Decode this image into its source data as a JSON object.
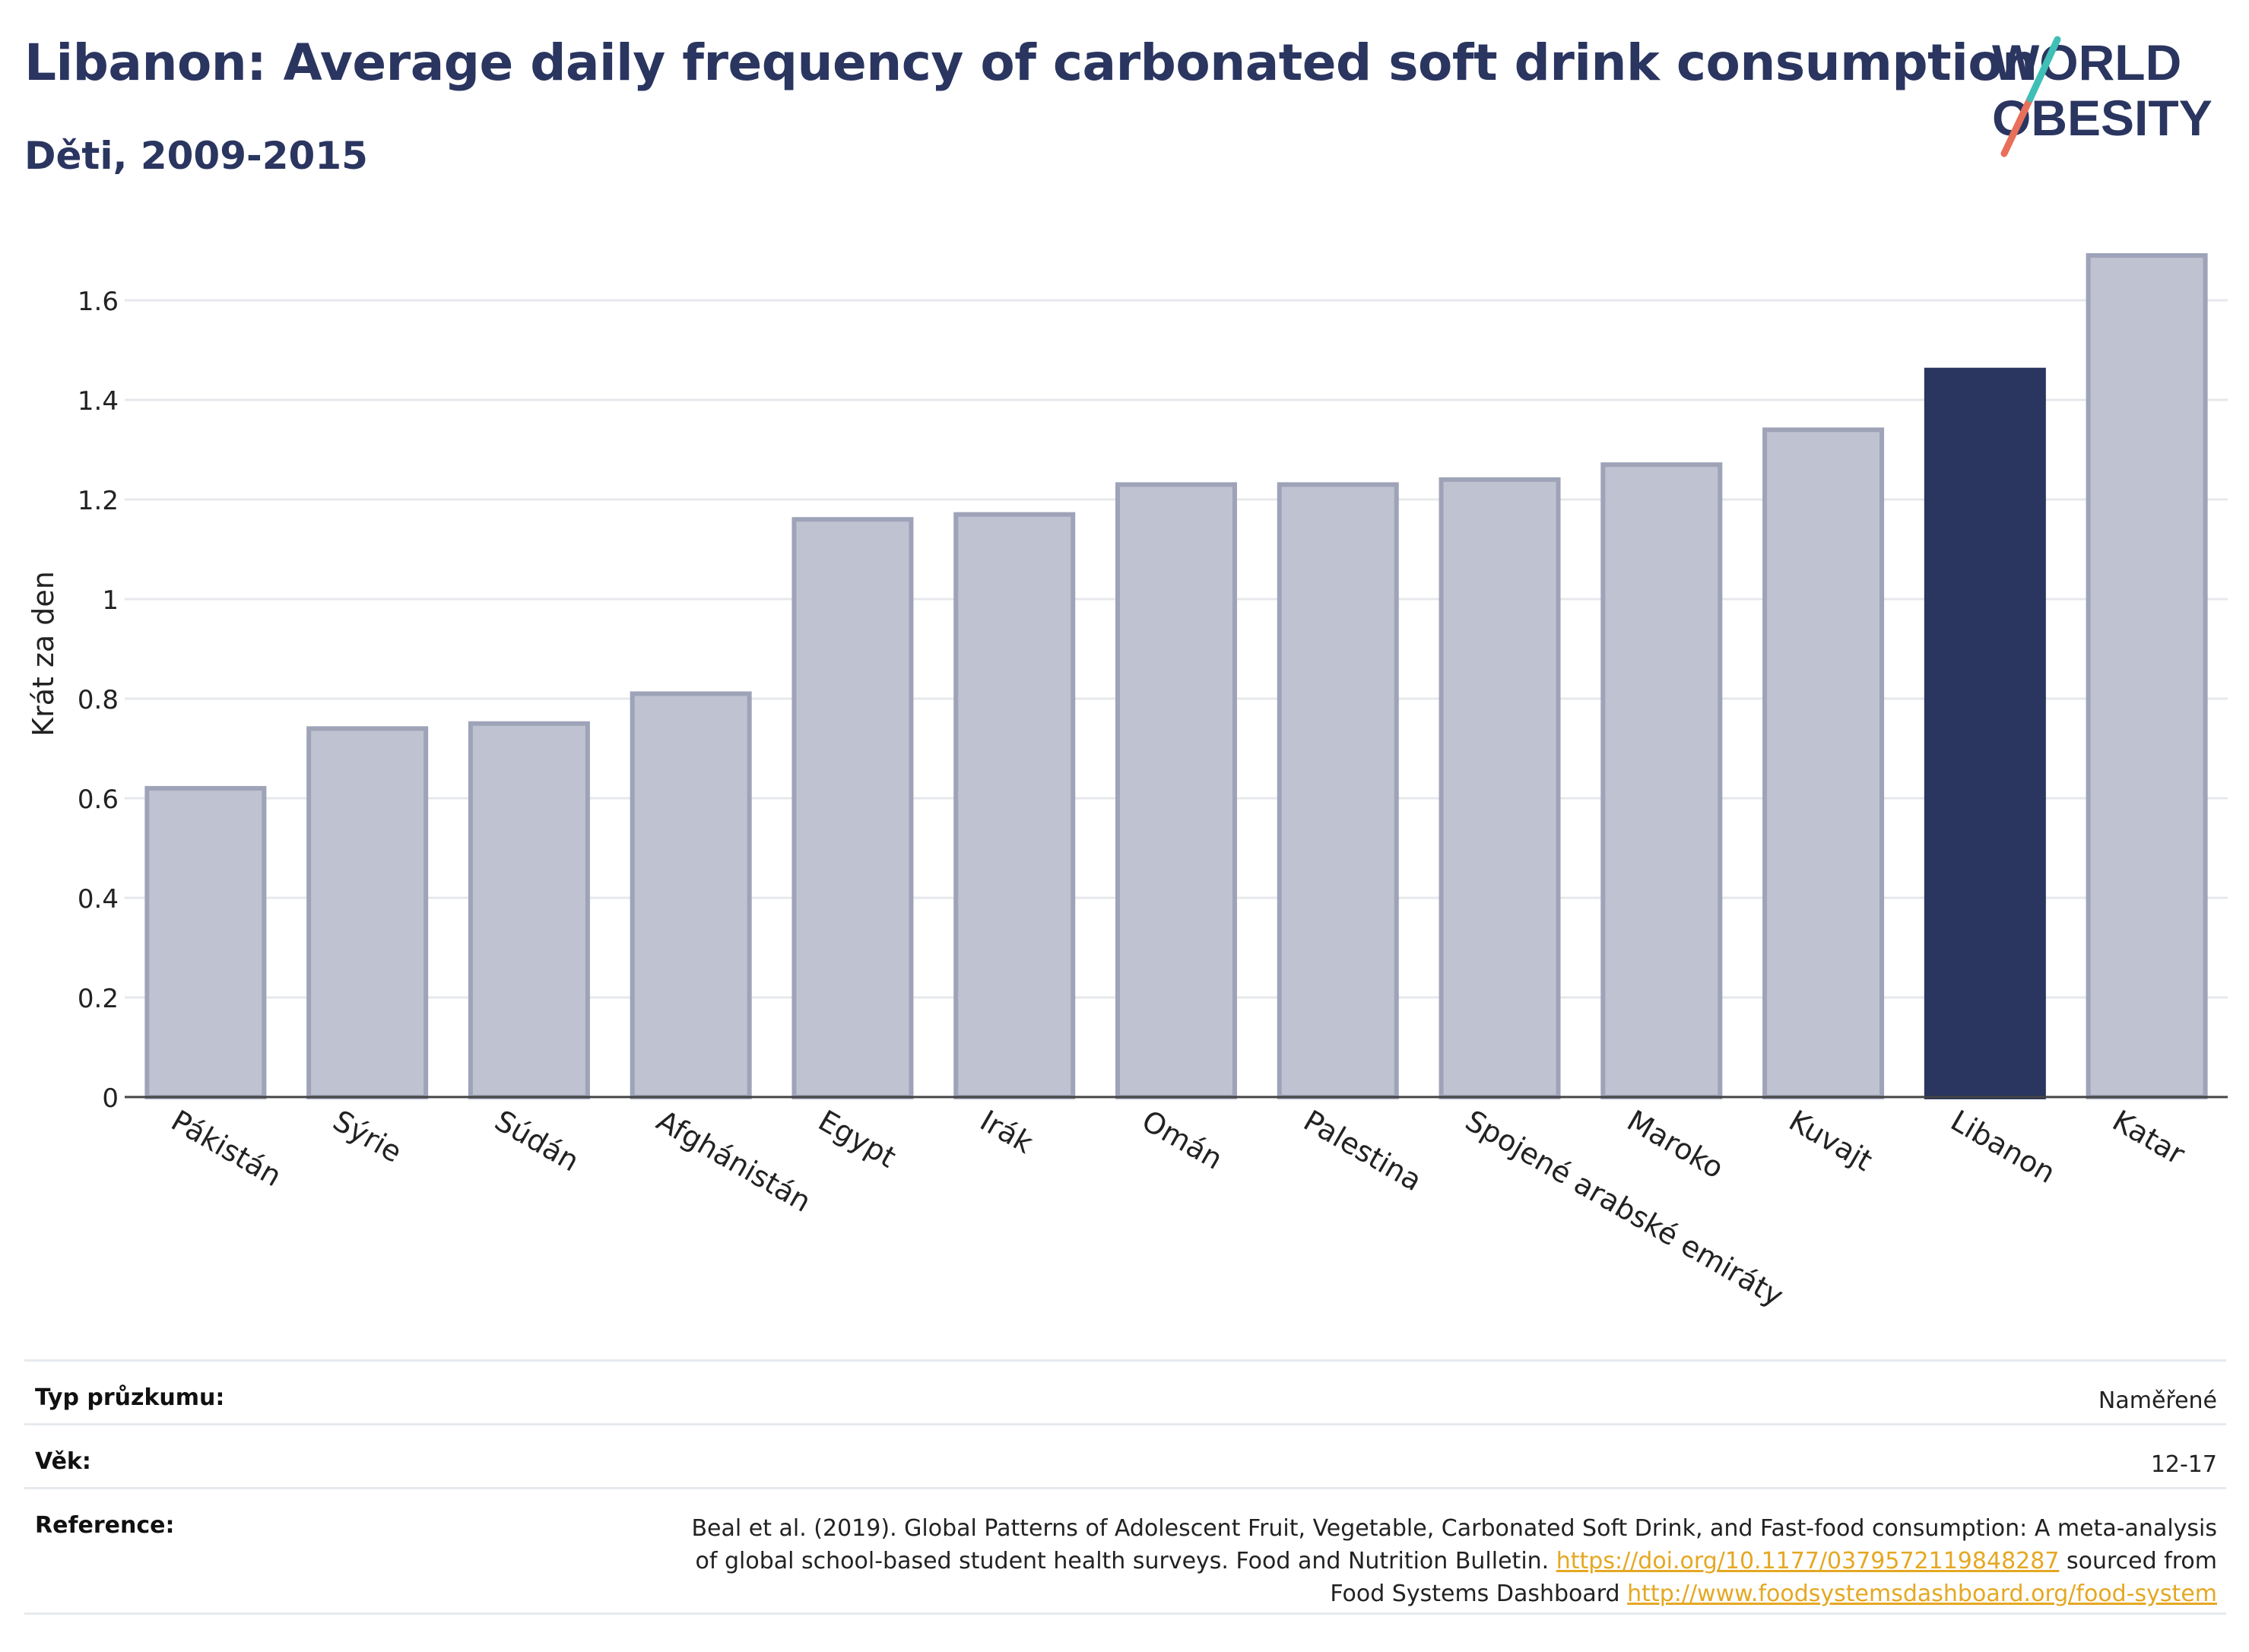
{
  "header": {
    "title": "Libanon: Average daily frequency of carbonated soft drink consumption",
    "subtitle": "Děti, 2009-2015"
  },
  "logo": {
    "line1": "WORLD",
    "line2": "OBESITY"
  },
  "colors": {
    "title": "#2a3560",
    "bar": "#bfc2d0",
    "bar_border": "#9ea3b8",
    "highlight": "#2a3560",
    "link": "#e5a823"
  },
  "chart_data": {
    "type": "bar",
    "categories": [
      "Pákistán",
      "Sýrie",
      "Súdán",
      "Afghánistán",
      "Egypt",
      "Irák",
      "Omán",
      "Palestina",
      "Spojené arabské emiráty",
      "Maroko",
      "Kuvajt",
      "Libanon",
      "Katar"
    ],
    "values": [
      0.62,
      0.74,
      0.75,
      0.81,
      1.16,
      1.17,
      1.23,
      1.23,
      1.24,
      1.27,
      1.34,
      1.46,
      1.69
    ],
    "highlight": "Libanon",
    "ylabel": "Krát za den",
    "ylim": [
      0,
      1.75
    ],
    "yticks": [
      "0",
      "0.2",
      "0.4",
      "0.6",
      "0.8",
      "1",
      "1.2",
      "1.4",
      "1.6"
    ],
    "grid": true
  },
  "meta": [
    {
      "label": "Typ průzkumu:",
      "value": "Naměřené"
    },
    {
      "label": "Věk:",
      "value": "12-17"
    }
  ],
  "reference": {
    "label": "Reference:",
    "text1": "Beal et al. (2019). Global Patterns of Adolescent Fruit, Vegetable, Carbonated Soft Drink, and Fast-food consumption: A meta-analysis",
    "text2": "of global school-based student health surveys. Food and Nutrition Bulletin.",
    "link1": "https://doi.org/10.1177/0379572119848287",
    "text3": "sourced from",
    "text4": "Food Systems Dashboard",
    "link2": "http://www.foodsystemsdashboard.org/food-system"
  }
}
